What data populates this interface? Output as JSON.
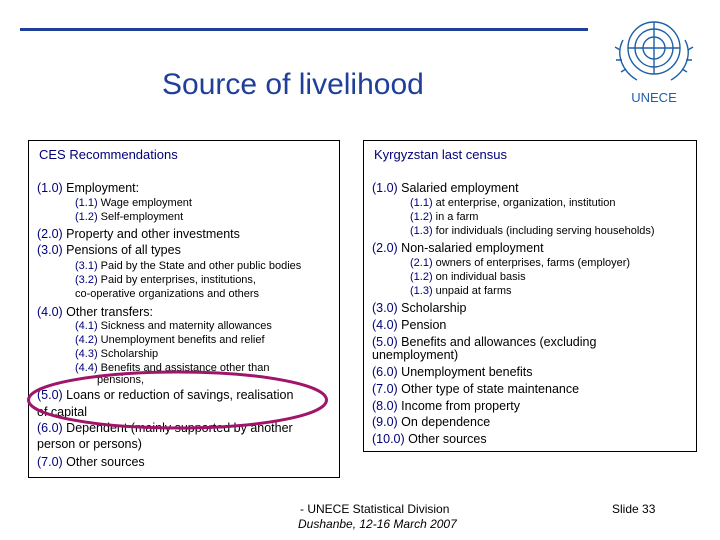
{
  "slide": {
    "title": "Source of livelihood",
    "logo_text": "UNECE",
    "ces": {
      "heading": "CES Recommendations",
      "items": [
        {
          "num": "(1.0)",
          "text": " Employment:"
        },
        {
          "num": "(1.1)",
          "text": " Wage employment"
        },
        {
          "num": "(1.2)",
          "text": " Self-employment"
        },
        {
          "num": "(2.0)",
          "text": " Property and other investments"
        },
        {
          "num": "(3.0)",
          "text": " Pensions of all types"
        },
        {
          "num": "(3.1)",
          "text": " Paid by the State and other public bodies"
        },
        {
          "num": "(3.2)",
          "text": " Paid by enterprises, institutions,"
        },
        {
          "num": "",
          "text": "co-operative organizations and others"
        },
        {
          "num": "(4.0)",
          "text": " Other transfers:"
        },
        {
          "num": "(4.1)",
          "text": " Sickness and maternity allowances"
        },
        {
          "num": "(4.2)",
          "text": " Unemployment benefits and relief"
        },
        {
          "num": "(4.3)",
          "text": " Scholarship"
        },
        {
          "num": "(4.4)",
          "text": " Benefits and assistance other than"
        },
        {
          "num": "",
          "text": "pensions,"
        },
        {
          "num": "(5.0)",
          "text": " Loans or reduction of savings, realisation"
        },
        {
          "num": "",
          "text": "of capital"
        },
        {
          "num": "(6.0)",
          "text": " Dependent (mainly supported by another"
        },
        {
          "num": "",
          "text": "person or persons)"
        },
        {
          "num": "(7.0)",
          "text": " Other sources"
        }
      ]
    },
    "kyrgyz": {
      "heading": "Kyrgyzstan last census",
      "items": [
        {
          "num": "(1.0)",
          "text": " Salaried employment"
        },
        {
          "num": "(1.1)",
          "text": " at enterprise, organization, institution"
        },
        {
          "num": "(1.2)",
          "text": " in a farm"
        },
        {
          "num": "(1.3)",
          "text": " for individuals (including serving households)"
        },
        {
          "num": "(2.0)",
          "text": " Non-salaried employment"
        },
        {
          "num": "(2.1)",
          "text": " owners of enterprises, farms (employer)"
        },
        {
          "num": "(1.2)",
          "text": " on individual basis"
        },
        {
          "num": "(1.3)",
          "text": " unpaid at farms"
        },
        {
          "num": "(3.0)",
          "text": " Scholarship"
        },
        {
          "num": "(4.0)",
          "text": " Pension"
        },
        {
          "num": "(5.0)",
          "text": " Benefits and allowances (excluding"
        },
        {
          "num": "",
          "text": "unemployment)"
        },
        {
          "num": "(6.0)",
          "text": " Unemployment benefits"
        },
        {
          "num": "(7.0)",
          "text": " Other type of state maintenance"
        },
        {
          "num": "(8.0)",
          "text": " Income from property"
        },
        {
          "num": "(9.0)",
          "text": " On dependence"
        },
        {
          "num": "(10.0)",
          "text": " Other sources"
        }
      ]
    },
    "footer": {
      "line1": "- UNECE Statistical Division",
      "line2": "Dushanbe, 12-16 March 2007",
      "slide_label": "Slide 33"
    },
    "colors": {
      "title": "#1f3f99",
      "number": "#00007a",
      "highlight_oval": "#a0146a",
      "logo": "#1f5fa8"
    }
  }
}
